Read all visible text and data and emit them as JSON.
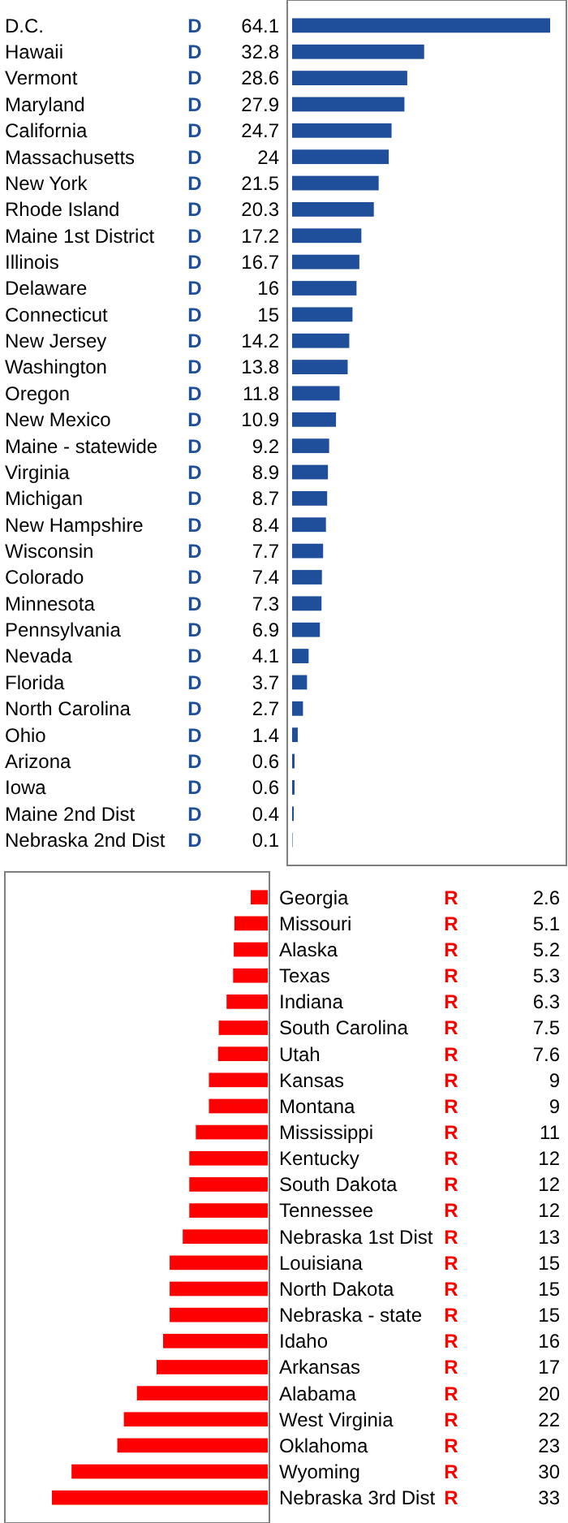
{
  "chart_data": [
    {
      "type": "bar",
      "orientation": "horizontal",
      "categories": [
        "D.C.",
        "Hawaii",
        "Vermont",
        "Maryland",
        "California",
        "Massachusetts",
        "New York",
        "Rhode Island",
        "Maine 1st District",
        "Illinois",
        "Delaware",
        "Connecticut",
        "New Jersey",
        "Washington",
        "Oregon",
        "New Mexico",
        "Maine - statewide",
        "Virginia",
        "Michigan",
        "New Hampshire",
        "Wisconsin",
        "Colorado",
        "Minnesota",
        "Pennsylvania",
        "Nevada",
        "Florida",
        "North Carolina",
        "Ohio",
        "Arizona",
        "Iowa",
        "Maine 2nd Dist",
        "Nebraska 2nd Dist"
      ],
      "series": [
        {
          "name": "D",
          "color": "#1f4e9a",
          "values": [
            64.1,
            32.8,
            28.6,
            27.9,
            24.7,
            24,
            21.5,
            20.3,
            17.2,
            16.7,
            16,
            15,
            14.2,
            13.8,
            11.8,
            10.9,
            9.2,
            8.9,
            8.7,
            8.4,
            7.7,
            7.4,
            7.3,
            6.9,
            4.1,
            3.7,
            2.7,
            1.4,
            0.6,
            0.6,
            0.4,
            0.1
          ]
        }
      ],
      "data_labels": true
    },
    {
      "type": "bar",
      "orientation": "horizontal",
      "categories": [
        "Georgia",
        "Missouri",
        "Alaska",
        "Texas",
        "Indiana",
        "South Carolina",
        "Utah",
        "Kansas",
        "Montana",
        "Mississippi",
        "Kentucky",
        "South Dakota",
        "Tennessee",
        "Nebraska 1st Dist",
        "Louisiana",
        "North Dakota",
        "Nebraska - state",
        "Idaho",
        "Arkansas",
        "Alabama",
        "West Virginia",
        "Oklahoma",
        "Wyoming",
        "Nebraska 3rd Dist"
      ],
      "series": [
        {
          "name": "R",
          "color": "#ff0000",
          "values": [
            2.6,
            5.1,
            5.2,
            5.3,
            6.3,
            7.5,
            7.6,
            9,
            9,
            11,
            12,
            12,
            12,
            13,
            15,
            15,
            15,
            16,
            17,
            20,
            22,
            23,
            30,
            33
          ]
        }
      ],
      "data_labels": true
    }
  ]
}
